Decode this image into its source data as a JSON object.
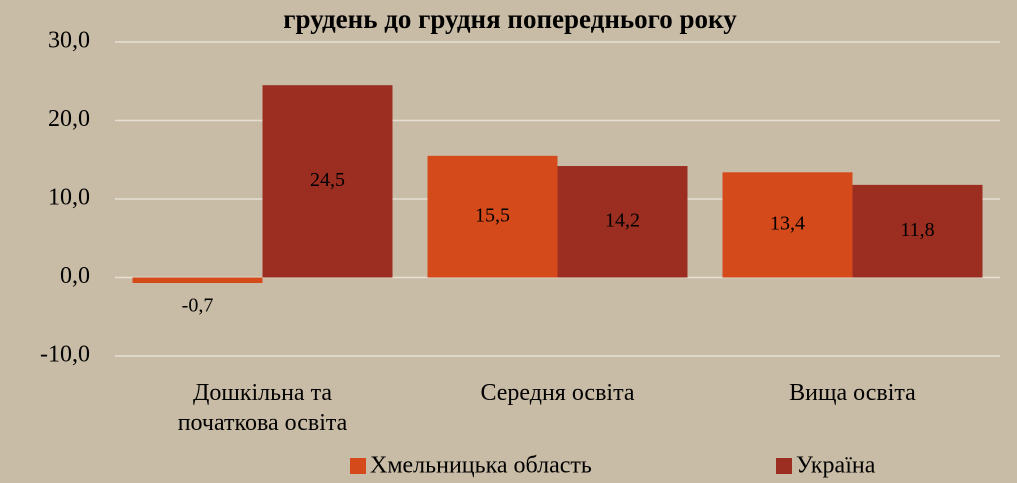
{
  "chart_data": {
    "type": "bar",
    "title": "грудень до грудня попереднього року",
    "categories": [
      "Дошкільна та початкова освіта",
      "Середня освіта",
      "Вища освіта"
    ],
    "series": [
      {
        "name": "Хмельницька область",
        "color": "#d44a1a",
        "values": [
          -0.7,
          15.5,
          13.4
        ],
        "value_labels": [
          "-0,7",
          "15,5",
          "13,4"
        ]
      },
      {
        "name": "Україна",
        "color": "#9b2e21",
        "values": [
          24.5,
          14.2,
          11.8
        ],
        "value_labels": [
          "24,5",
          "14,2",
          "11,8"
        ]
      }
    ],
    "ylim": [
      -10,
      30
    ],
    "yticks": [
      {
        "value": -10,
        "label": "-10,0"
      },
      {
        "value": 0,
        "label": "0,0"
      },
      {
        "value": 10,
        "label": "10,0"
      },
      {
        "value": 20,
        "label": "20,0"
      },
      {
        "value": 30,
        "label": "30,0"
      }
    ],
    "grid": true,
    "legend": "bottom"
  }
}
